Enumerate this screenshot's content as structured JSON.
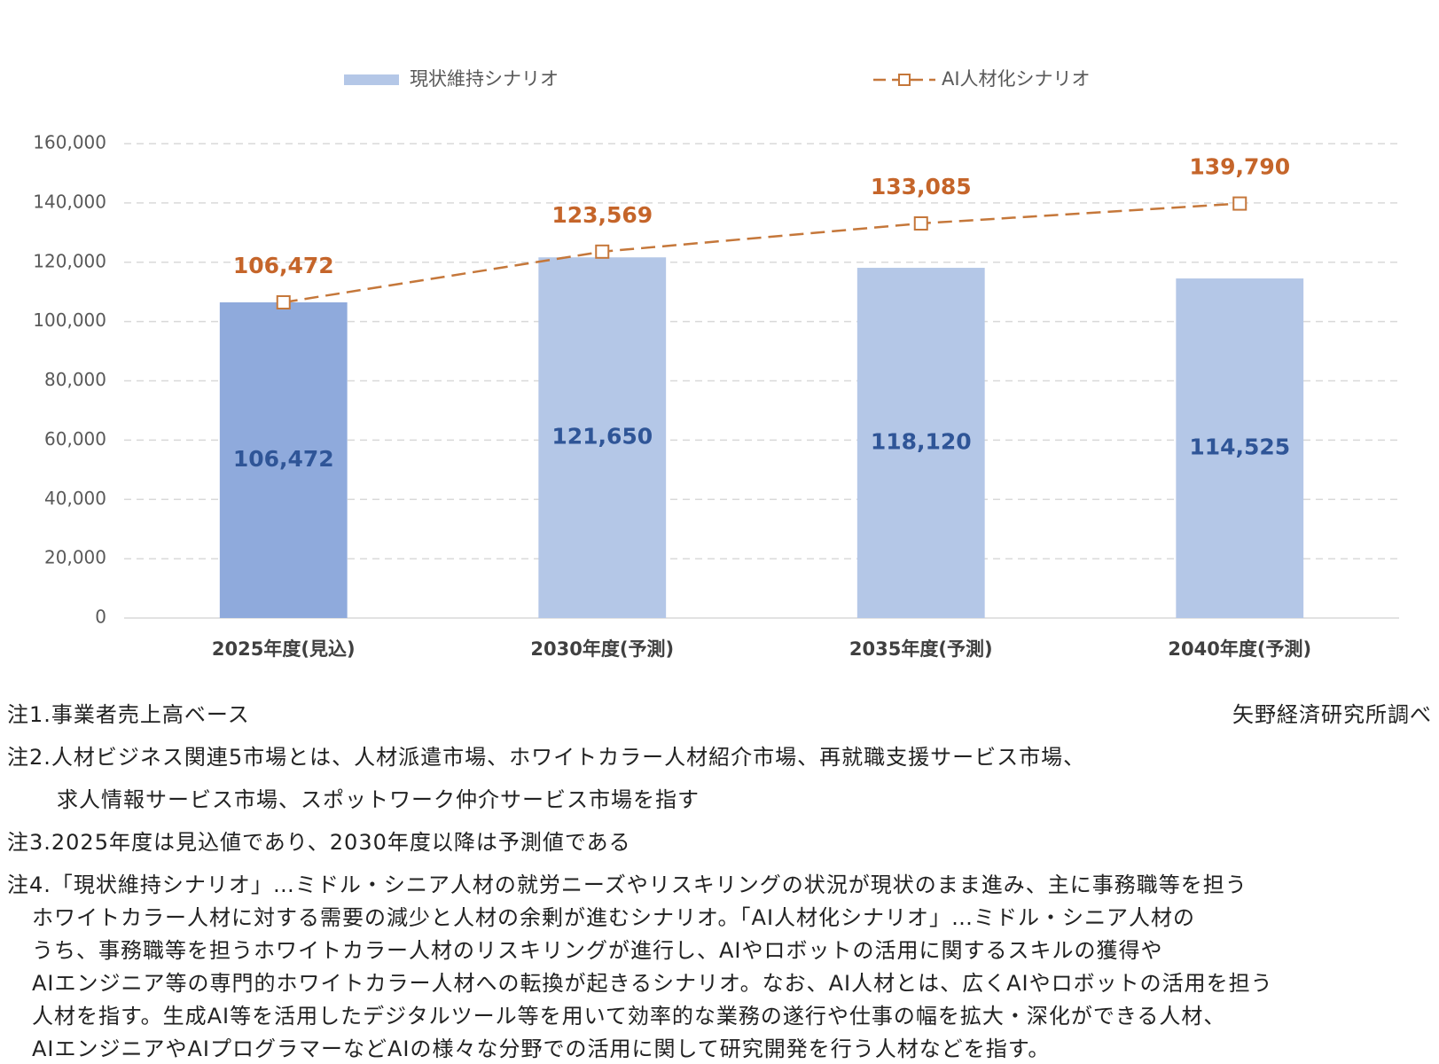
{
  "chart_data": {
    "type": "bar_line",
    "categories": [
      "2025年度(見込)",
      "2030年度(予測)",
      "2035年度(予測)",
      "2040年度(予測)"
    ],
    "series": [
      {
        "name": "現状維持シナリオ",
        "type": "bar",
        "color": "#b4c7e7",
        "colors": [
          "#8faadc",
          "#b4c7e7",
          "#b4c7e7",
          "#b4c7e7"
        ],
        "values": [
          106472,
          121650,
          118120,
          114525
        ],
        "value_labels": [
          "106,472",
          "121,650",
          "118,120",
          "114,525"
        ],
        "label_color": "#2f5597"
      },
      {
        "name": "AI人材化シナリオ",
        "type": "line",
        "color": "#c5773a",
        "dashed": true,
        "marker": "square",
        "values": [
          106472,
          123569,
          133085,
          139790
        ],
        "value_labels": [
          "106,472",
          "123,569",
          "133,085",
          "139,790"
        ],
        "label_color": "#c5652a"
      }
    ],
    "ylim": [
      0,
      160000
    ],
    "yticks": [
      0,
      {
        "value": 20000,
        "label": "20,000"
      },
      {
        "value": 40000,
        "label": "40,000"
      },
      {
        "value": 60000,
        "label": "60,000"
      },
      {
        "value": 80000,
        "label": "80,000"
      },
      {
        "value": 100000,
        "label": "100,000"
      },
      {
        "value": 120000,
        "label": "120,000"
      },
      {
        "value": 140000,
        "label": "140,000"
      },
      {
        "value": 160000,
        "label": "160,000"
      }
    ],
    "grid": true,
    "legend": "top"
  },
  "notes": [
    [
      "注1.事業者売上高ベース"
    ],
    [
      "注2.人材ビジネス関連5市場とは、人材派遣市場、ホワイトカラー人材紹介市場、再就職支援サービス市場、",
      "求人情報サービス市場、スポットワーク仲介サービス市場を指す"
    ],
    [
      "注3.2025年度は見込値であり、2030年度以降は予測値である"
    ],
    [
      "注4.「現状維持シナリオ」…ミドル・シニア人材の就労ニーズやリスキリングの状況が現状のまま進み、主に事務職等を担う",
      "ホワイトカラー人材に対する需要の減少と人材の余剰が進むシナリオ。「AI人材化シナリオ」…ミドル・シニア人材の",
      "うち、事務職等を担うホワイトカラー人材のリスキリングが進行し、AIやロボットの活用に関するスキルの獲得や",
      "AIエンジニア等の専門的ホワイトカラー人材への転換が起きるシナリオ。なお、AI人材とは、広くAIやロボットの活用を担う",
      "人材を指す。生成AI等を活用したデジタルツール等を用いて効率的な業務の遂行や仕事の幅を拡大・深化ができる人材、",
      "AIエンジニアやAIプログラマーなどAIの様々な分野での活用に関して研究開発を行う人材などを指す。"
    ]
  ],
  "source": "矢野経済研究所調べ"
}
